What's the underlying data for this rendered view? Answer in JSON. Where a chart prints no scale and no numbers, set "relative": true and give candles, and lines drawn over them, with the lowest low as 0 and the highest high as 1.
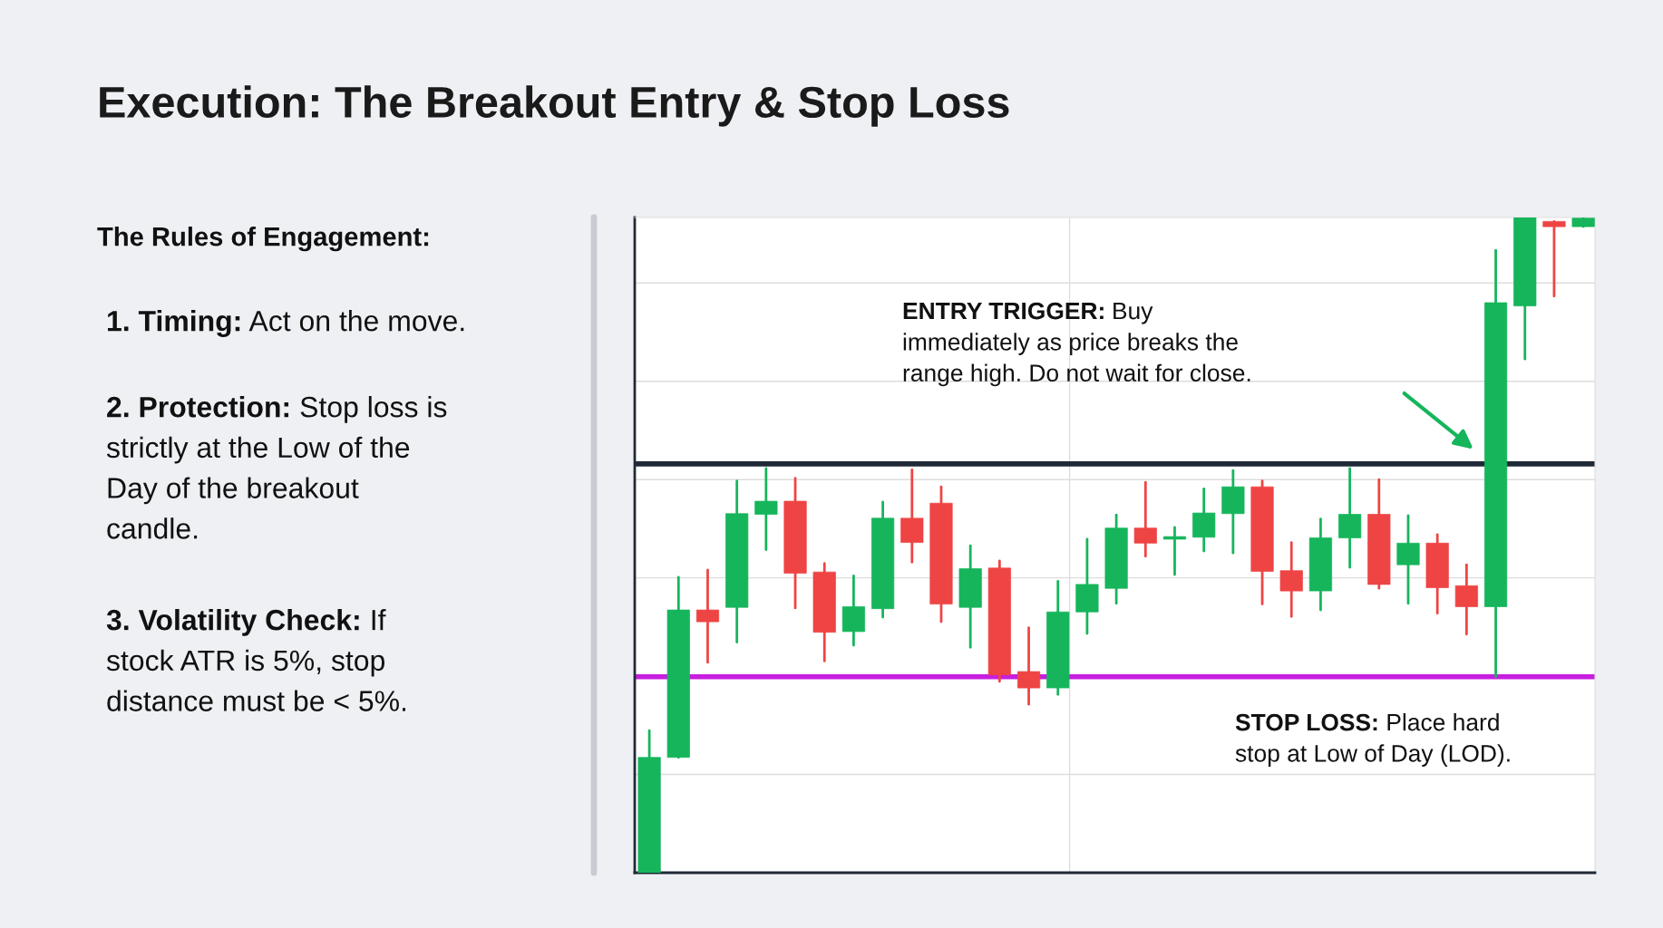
{
  "chart_data": {
    "type": "candlestick",
    "title": "Execution: The Breakout Entry & Stop Loss",
    "relative": true,
    "categories": [
      null,
      null,
      null,
      null,
      null,
      null,
      null,
      null,
      null,
      null,
      null,
      null,
      null,
      null,
      null,
      null,
      null,
      null,
      null,
      null,
      null,
      null,
      null,
      null,
      null,
      null,
      null,
      null,
      null,
      null,
      null,
      null,
      null
    ],
    "ohlc": [
      [
        0,
        0.217,
        0,
        0.176
      ],
      [
        0.176,
        0.451,
        0.176,
        0.401
      ],
      [
        0.401,
        0.462,
        0.321,
        0.383
      ],
      [
        0.405,
        0.598,
        0.352,
        0.548
      ],
      [
        0.547,
        0.617,
        0.493,
        0.567
      ],
      [
        0.567,
        0.602,
        0.404,
        0.457
      ],
      [
        0.459,
        0.472,
        0.323,
        0.367
      ],
      [
        0.368,
        0.453,
        0.347,
        0.406
      ],
      [
        0.403,
        0.566,
        0.39,
        0.541
      ],
      [
        0.541,
        0.615,
        0.474,
        0.504
      ],
      [
        0.564,
        0.589,
        0.383,
        0.41
      ],
      [
        0.405,
        0.499,
        0.344,
        0.464
      ],
      [
        0.465,
        0.476,
        0.292,
        0.302
      ],
      [
        0.307,
        0.374,
        0.257,
        0.282
      ],
      [
        0.282,
        0.445,
        0.272,
        0.398
      ],
      [
        0.398,
        0.509,
        0.365,
        0.44
      ],
      [
        0.434,
        0.546,
        0.411,
        0.526
      ],
      [
        0.526,
        0.596,
        0.483,
        0.503
      ],
      [
        0.509,
        0.527,
        0.455,
        0.512
      ],
      [
        0.512,
        0.586,
        0.491,
        0.549
      ],
      [
        0.548,
        0.614,
        0.488,
        0.589
      ],
      [
        0.589,
        0.598,
        0.41,
        0.46
      ],
      [
        0.461,
        0.504,
        0.391,
        0.43
      ],
      [
        0.43,
        0.54,
        0.401,
        0.511
      ],
      [
        0.511,
        0.617,
        0.466,
        0.547
      ],
      [
        0.547,
        0.6,
        0.434,
        0.44
      ],
      [
        0.47,
        0.545,
        0.411,
        0.503
      ],
      [
        0.503,
        0.516,
        0.396,
        0.435
      ],
      [
        0.438,
        0.47,
        0.364,
        0.406
      ],
      [
        0.406,
        0.95,
        0.299,
        0.87
      ],
      [
        0.865,
        1.0,
        0.784,
        1.0
      ],
      [
        0.994,
        0.994,
        0.88,
        0.986
      ],
      [
        0.986,
        0.999,
        0.986,
        0.999
      ]
    ],
    "colors": [
      "#16b55b",
      "#16b55b",
      "#ef4444",
      "#16b55b",
      "#16b55b",
      "#ef4444",
      "#ef4444",
      "#16b55b",
      "#16b55b",
      "#ef4444",
      "#ef4444",
      "#16b55b",
      "#ef4444",
      "#ef4444",
      "#16b55b",
      "#16b55b",
      "#16b55b",
      "#ef4444",
      "#16b55b",
      "#16b55b",
      "#16b55b",
      "#ef4444",
      "#ef4444",
      "#16b55b",
      "#16b55b",
      "#ef4444",
      "#16b55b",
      "#ef4444",
      "#ef4444",
      "#16b55b",
      "#16b55b",
      "#ef4444",
      "#16b55b"
    ],
    "ref_lines": [
      {
        "axis": "y",
        "value": 0.624,
        "color": "#1f2937"
      },
      {
        "axis": "y",
        "value": 0.299,
        "color": "#c81ee0"
      }
    ],
    "grid": true,
    "annotations": [
      "ENTRY TRIGGER: Buy\nimmediately as price breaks the\nrange high. Do not wait for close.",
      "STOP LOSS: Place hard\nstop at Low of Day (LOD).",
      "The Rules of Engagement:",
      "1. Timing: Act on the move.",
      "2. Protection: Stop loss is\nstrictly at the Low of the\nDay of the breakout\ncandle.",
      "3. Volatility Check: If\nstock ATR is 5%, stop\ndistance must be < 5%."
    ]
  }
}
